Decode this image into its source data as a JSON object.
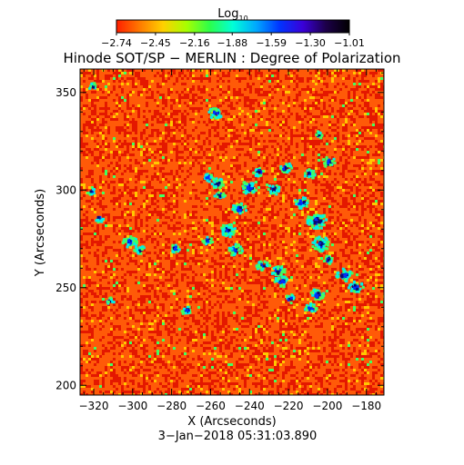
{
  "colorbar": {
    "label_base": "Log",
    "label_subscript": "10",
    "tick_labels": [
      "−2.74",
      "−2.45",
      "−2.16",
      "−1.88",
      "−1.59",
      "−1.30",
      "−1.01"
    ],
    "range": [
      -2.74,
      -1.01
    ],
    "palette": [
      "#ff1e00",
      "#ff7a00",
      "#ffd000",
      "#a8ff00",
      "#2cff4a",
      "#00ffd8",
      "#00a8ff",
      "#0034ff",
      "#3a00d8",
      "#1c0048",
      "#000000"
    ]
  },
  "title": "Hinode SOT/SP − MERLIN : Degree of Polarization",
  "x_axis": {
    "label": "X (Arcseconds)",
    "ticks": [
      -320,
      -300,
      -280,
      -260,
      -240,
      -220,
      -200,
      -180
    ],
    "tick_labels": [
      "−320",
      "−300",
      "−280",
      "−260",
      "−240",
      "−220",
      "−200",
      "−180"
    ],
    "range": [
      -327,
      -171
    ]
  },
  "y_axis": {
    "label": "Y (Arcseconds)",
    "ticks": [
      200,
      250,
      300,
      350
    ],
    "tick_labels": [
      "200",
      "250",
      "300",
      "350"
    ],
    "range": [
      195,
      362
    ]
  },
  "timestamp": "3−Jan−2018 05:31:03.890",
  "map_colors": {
    "background": "#ff5a08",
    "red": "#e41800",
    "yellow": "#ffc800",
    "green": "#40ff60",
    "cyan": "#00f0e8",
    "blue": "#0030ff",
    "navy": "#0a0a70"
  }
}
